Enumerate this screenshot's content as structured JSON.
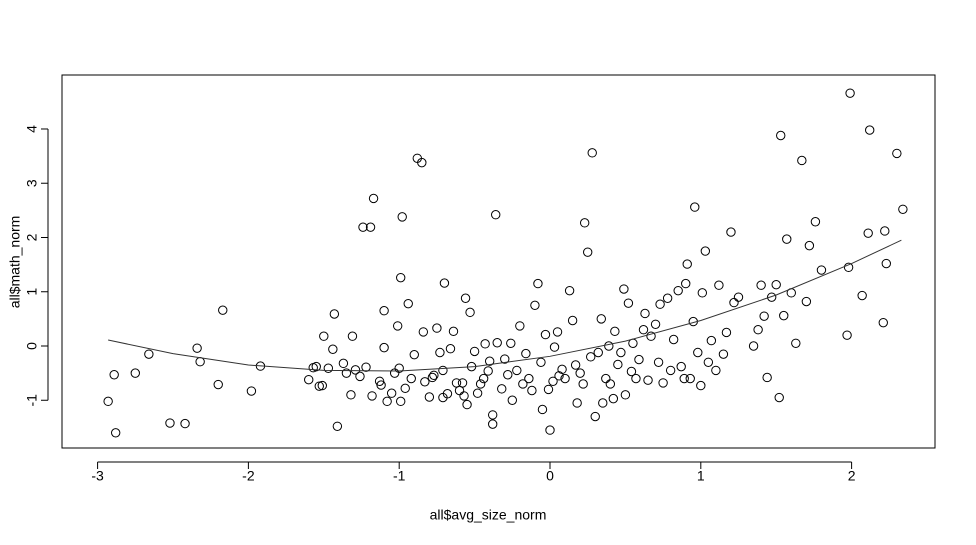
{
  "chart_data": {
    "type": "scatter",
    "xlabel": "all$avg_size_norm",
    "ylabel": "all$math_norm",
    "xlim": [
      -3.236,
      2.553
    ],
    "ylim": [
      -1.88,
      4.995
    ],
    "xticks": [
      -3,
      -2,
      -1,
      0,
      1,
      2
    ],
    "yticks": [
      -1,
      0,
      1,
      2,
      3,
      4
    ],
    "color": "#000000",
    "x": [
      -2.93,
      -2.89,
      -2.88,
      -2.75,
      -2.66,
      -2.52,
      -2.42,
      -2.34,
      -2.32,
      -2.2,
      -2.17,
      -1.98,
      -1.92,
      -1.6,
      -1.57,
      -1.55,
      -1.53,
      -1.51,
      -1.5,
      -1.47,
      -1.44,
      -1.43,
      -1.41,
      -1.37,
      -1.35,
      -1.32,
      -1.31,
      -1.29,
      -1.26,
      -1.24,
      -1.22,
      -1.19,
      -1.17,
      -1.18,
      -1.13,
      -1.12,
      -1.1,
      -1.1,
      -1.08,
      -1.05,
      -1.03,
      -1.01,
      -1.0,
      -0.98,
      -0.99,
      -0.99,
      -0.96,
      -0.94,
      -0.92,
      -0.9,
      -0.88,
      -0.85,
      -0.84,
      -0.83,
      -0.8,
      -0.78,
      -0.77,
      -0.75,
      -0.73,
      -0.71,
      -0.71,
      -0.7,
      -0.68,
      -0.66,
      -0.64,
      -0.62,
      -0.6,
      -0.58,
      -0.57,
      -0.55,
      -0.56,
      -0.53,
      -0.52,
      -0.5,
      -0.48,
      -0.46,
      -0.44,
      -0.43,
      -0.41,
      -0.4,
      -0.38,
      -0.38,
      -0.36,
      -0.35,
      -0.32,
      -0.3,
      -0.28,
      -0.26,
      -0.25,
      -0.22,
      -0.2,
      -0.18,
      -0.16,
      -0.14,
      -0.12,
      -0.1,
      -0.08,
      -0.06,
      -0.05,
      -0.03,
      -0.01,
      0.0,
      0.02,
      0.03,
      0.05,
      0.06,
      0.08,
      0.1,
      0.13,
      0.15,
      0.17,
      0.18,
      0.2,
      0.22,
      0.23,
      0.25,
      0.27,
      0.28,
      0.3,
      0.32,
      0.34,
      0.35,
      0.37,
      0.39,
      0.4,
      0.42,
      0.43,
      0.45,
      0.47,
      0.49,
      0.5,
      0.52,
      0.54,
      0.55,
      0.57,
      0.59,
      0.62,
      0.63,
      0.65,
      0.67,
      0.7,
      0.72,
      0.73,
      0.75,
      0.78,
      0.8,
      0.82,
      0.85,
      0.87,
      0.89,
      0.9,
      0.91,
      0.93,
      0.95,
      0.96,
      0.98,
      1.0,
      1.01,
      1.03,
      1.05,
      1.07,
      1.1,
      1.12,
      1.15,
      1.17,
      1.2,
      1.22,
      1.25,
      1.35,
      1.38,
      1.4,
      1.42,
      1.44,
      1.47,
      1.5,
      1.52,
      1.53,
      1.55,
      1.57,
      1.6,
      1.63,
      1.67,
      1.7,
      1.72,
      1.76,
      1.8,
      1.97,
      1.98,
      1.99,
      2.07,
      2.11,
      2.12,
      2.21,
      2.22,
      2.23,
      2.3,
      2.34
    ],
    "values": [
      -1.02,
      -0.53,
      -1.6,
      -0.5,
      -0.15,
      -1.42,
      -1.43,
      -0.04,
      -0.29,
      -0.71,
      0.66,
      -0.83,
      -0.37,
      -0.62,
      -0.4,
      -0.38,
      -0.74,
      -0.73,
      0.18,
      -0.41,
      -0.06,
      0.59,
      -1.48,
      -0.32,
      -0.5,
      -0.9,
      0.18,
      -0.44,
      -0.56,
      2.19,
      -0.39,
      2.19,
      2.72,
      -0.92,
      -0.65,
      -0.72,
      0.65,
      -0.03,
      -1.02,
      -0.87,
      -0.5,
      0.37,
      -0.41,
      2.38,
      1.26,
      -1.02,
      -0.78,
      0.78,
      -0.6,
      -0.16,
      3.46,
      3.38,
      0.26,
      -0.66,
      -0.94,
      -0.58,
      -0.54,
      0.33,
      -0.12,
      -0.45,
      -0.95,
      1.16,
      -0.88,
      -0.05,
      0.27,
      -0.68,
      -0.82,
      -0.68,
      -0.92,
      -1.08,
      0.88,
      0.62,
      -0.38,
      -0.1,
      -0.87,
      -0.7,
      -0.6,
      0.04,
      -0.46,
      -0.28,
      -1.27,
      -1.44,
      2.42,
      0.06,
      -0.79,
      -0.24,
      -0.53,
      0.05,
      -1.0,
      -0.45,
      0.37,
      -0.7,
      -0.14,
      -0.6,
      -0.82,
      0.75,
      1.15,
      -0.3,
      -1.17,
      0.21,
      -0.8,
      -1.55,
      -0.65,
      -0.02,
      0.26,
      -0.55,
      -0.43,
      -0.6,
      1.02,
      0.47,
      -0.35,
      -1.05,
      -0.5,
      -0.7,
      2.27,
      1.73,
      -0.2,
      3.56,
      -1.3,
      -0.12,
      0.5,
      -1.05,
      -0.6,
      0.0,
      -0.7,
      -0.97,
      0.27,
      -0.34,
      -0.12,
      1.05,
      -0.9,
      0.79,
      -0.47,
      0.05,
      -0.6,
      -0.25,
      0.3,
      0.6,
      -0.63,
      0.18,
      0.4,
      -0.3,
      0.77,
      -0.68,
      0.88,
      -0.45,
      0.12,
      1.02,
      -0.38,
      -0.6,
      1.15,
      1.51,
      -0.6,
      0.45,
      2.56,
      -0.12,
      -0.73,
      0.98,
      1.75,
      -0.3,
      0.1,
      -0.45,
      1.12,
      -0.15,
      0.25,
      2.1,
      0.8,
      0.9,
      0.0,
      0.3,
      1.12,
      0.55,
      -0.58,
      0.9,
      1.13,
      -0.95,
      3.88,
      0.56,
      1.97,
      0.98,
      0.05,
      3.42,
      0.82,
      1.85,
      2.29,
      1.4,
      0.2,
      1.45,
      4.66,
      0.93,
      2.08,
      3.98,
      0.43,
      2.12,
      1.52,
      3.55,
      2.52
    ],
    "fit": {
      "type": "line",
      "color": "#333333",
      "x": [
        -2.93,
        -2.5,
        -2,
        -1.5,
        -1,
        -0.5,
        0,
        0.5,
        1,
        1.5,
        2,
        2.33
      ],
      "values": [
        0.11,
        -0.14,
        -0.35,
        -0.45,
        -0.46,
        -0.38,
        -0.19,
        0.09,
        0.47,
        0.94,
        1.52,
        1.95
      ]
    }
  }
}
